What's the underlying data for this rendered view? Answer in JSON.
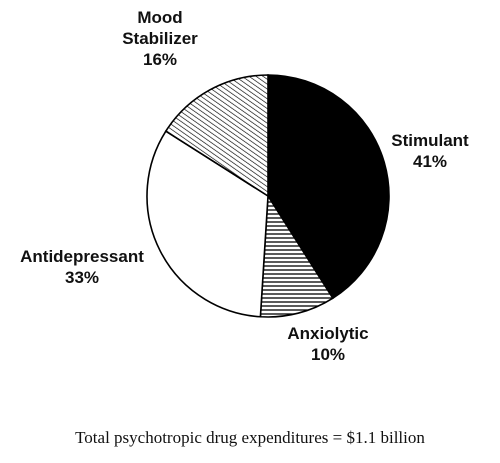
{
  "chart_data": {
    "type": "pie",
    "slices": [
      {
        "label_lines": [
          "Stimulant"
        ],
        "percent_text": "41%",
        "value": 41,
        "fill": "#000000",
        "pattern": "solid"
      },
      {
        "label_lines": [
          "Anxiolytic"
        ],
        "percent_text": "10%",
        "value": 10,
        "fill": "#ffffff",
        "pattern": "horizontal-lines"
      },
      {
        "label_lines": [
          "Antidepressant"
        ],
        "percent_text": "33%",
        "value": 33,
        "fill": "#ffffff",
        "pattern": "none"
      },
      {
        "label_lines": [
          "Mood",
          "Stabilizer"
        ],
        "percent_text": "16%",
        "value": 16,
        "fill": "#ffffff",
        "pattern": "diagonal-lines"
      }
    ],
    "start_angle_deg": 0,
    "direction": "clockwise",
    "legend": "none"
  },
  "footnote": "Total psychotropic drug expenditures = $1.1 billion"
}
